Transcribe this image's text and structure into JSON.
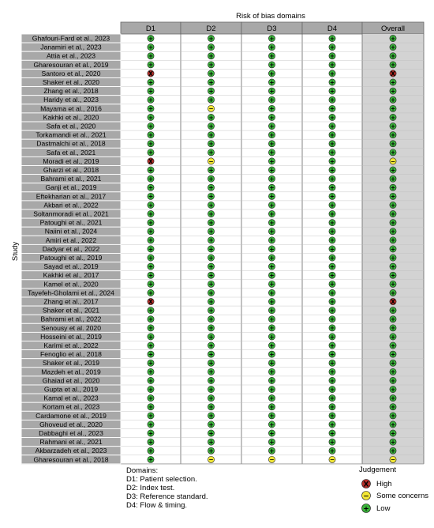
{
  "chart_data": {
    "type": "table",
    "title": "Risk of bias domains",
    "ylabel": "Study",
    "columns": [
      "D1",
      "D2",
      "D3",
      "D4",
      "Overall"
    ],
    "studies": [
      {
        "name": "Ghafouri-Fard et al., 2023",
        "values": [
          "low",
          "low",
          "low",
          "low",
          "low"
        ]
      },
      {
        "name": "Janamiri et al., 2023",
        "values": [
          "low",
          "low",
          "low",
          "low",
          "low"
        ]
      },
      {
        "name": "Attia et al., 2023",
        "values": [
          "low",
          "low",
          "low",
          "low",
          "low"
        ]
      },
      {
        "name": "Gharesouran et al., 2019",
        "values": [
          "low",
          "low",
          "low",
          "low",
          "low"
        ]
      },
      {
        "name": "Santoro et al., 2020",
        "values": [
          "high",
          "low",
          "low",
          "low",
          "high"
        ]
      },
      {
        "name": "Shaker et al., 2020",
        "values": [
          "low",
          "low",
          "low",
          "low",
          "low"
        ]
      },
      {
        "name": "Zhang et al., 2018",
        "values": [
          "low",
          "low",
          "low",
          "low",
          "low"
        ]
      },
      {
        "name": "Haridy et al., 2023",
        "values": [
          "low",
          "low",
          "low",
          "low",
          "low"
        ]
      },
      {
        "name": "Mayama et al., 2016",
        "values": [
          "low",
          "some",
          "low",
          "low",
          "low"
        ]
      },
      {
        "name": "Kakhki et al., 2020",
        "values": [
          "low",
          "low",
          "low",
          "low",
          "low"
        ]
      },
      {
        "name": "Safa et al., 2020",
        "values": [
          "low",
          "low",
          "low",
          "low",
          "low"
        ]
      },
      {
        "name": "Torkamandi et al., 2021",
        "values": [
          "low",
          "low",
          "low",
          "low",
          "low"
        ]
      },
      {
        "name": "Dastmalchi et al., 2018",
        "values": [
          "low",
          "low",
          "low",
          "low",
          "low"
        ]
      },
      {
        "name": "Safa et al., 2021",
        "values": [
          "low",
          "low",
          "low",
          "low",
          "low"
        ]
      },
      {
        "name": "Moradi et al., 2019",
        "values": [
          "high",
          "some",
          "low",
          "low",
          "some"
        ]
      },
      {
        "name": "Gharzi et al., 2018",
        "values": [
          "low",
          "low",
          "low",
          "low",
          "low"
        ]
      },
      {
        "name": "Bahrami et al., 2021",
        "values": [
          "low",
          "low",
          "low",
          "low",
          "low"
        ]
      },
      {
        "name": "Ganji et al., 2019",
        "values": [
          "low",
          "low",
          "low",
          "low",
          "low"
        ]
      },
      {
        "name": "Eftekharian et al., 2017",
        "values": [
          "low",
          "low",
          "low",
          "low",
          "low"
        ]
      },
      {
        "name": "Akbari et al., 2022",
        "values": [
          "low",
          "low",
          "low",
          "low",
          "low"
        ]
      },
      {
        "name": "Soltanmoradi et al., 2021",
        "values": [
          "low",
          "low",
          "low",
          "low",
          "low"
        ]
      },
      {
        "name": "Patoughi et al., 2021",
        "values": [
          "low",
          "low",
          "low",
          "low",
          "low"
        ]
      },
      {
        "name": "Naiini et al., 2024",
        "values": [
          "low",
          "low",
          "low",
          "low",
          "low"
        ]
      },
      {
        "name": "Amiri et al., 2022",
        "values": [
          "low",
          "low",
          "low",
          "low",
          "low"
        ]
      },
      {
        "name": "Dadyar et al., 2022",
        "values": [
          "low",
          "low",
          "low",
          "low",
          "low"
        ]
      },
      {
        "name": "Patoughi et al., 2019",
        "values": [
          "low",
          "low",
          "low",
          "low",
          "low"
        ]
      },
      {
        "name": "Sayad et al., 2019",
        "values": [
          "low",
          "low",
          "low",
          "low",
          "low"
        ]
      },
      {
        "name": "Kakhki et al., 2017",
        "values": [
          "low",
          "low",
          "low",
          "low",
          "low"
        ]
      },
      {
        "name": "Kamel et al., 2020",
        "values": [
          "low",
          "low",
          "low",
          "low",
          "low"
        ]
      },
      {
        "name": "Tayefeh-Gholami et al., 2024",
        "values": [
          "low",
          "low",
          "low",
          "low",
          "low"
        ]
      },
      {
        "name": "Zhang et al., 2017",
        "values": [
          "high",
          "low",
          "low",
          "low",
          "high"
        ]
      },
      {
        "name": "Shaker et al., 2021",
        "values": [
          "low",
          "low",
          "low",
          "low",
          "low"
        ]
      },
      {
        "name": "Bahrami et al., 2022",
        "values": [
          "low",
          "low",
          "low",
          "low",
          "low"
        ]
      },
      {
        "name": "Senousy et al. 2020",
        "values": [
          "low",
          "low",
          "low",
          "low",
          "low"
        ]
      },
      {
        "name": "Hosseini et al., 2019",
        "values": [
          "low",
          "low",
          "low",
          "low",
          "low"
        ]
      },
      {
        "name": "Karimi et al., 2022",
        "values": [
          "low",
          "low",
          "low",
          "low",
          "low"
        ]
      },
      {
        "name": "Fenoglio et al., 2018",
        "values": [
          "low",
          "low",
          "low",
          "low",
          "low"
        ]
      },
      {
        "name": "Shaker et al., 2019",
        "values": [
          "low",
          "low",
          "low",
          "low",
          "low"
        ]
      },
      {
        "name": "Mazdeh et al., 2019",
        "values": [
          "low",
          "low",
          "low",
          "low",
          "low"
        ]
      },
      {
        "name": "Ghaiad et al., 2020",
        "values": [
          "low",
          "low",
          "low",
          "low",
          "low"
        ]
      },
      {
        "name": "Gupta et al., 2019",
        "values": [
          "low",
          "low",
          "low",
          "low",
          "low"
        ]
      },
      {
        "name": "Kamal et al., 2023",
        "values": [
          "low",
          "low",
          "low",
          "low",
          "low"
        ]
      },
      {
        "name": "Kortam et al., 2023",
        "values": [
          "low",
          "low",
          "low",
          "low",
          "low"
        ]
      },
      {
        "name": "Cardamone et al., 2019",
        "values": [
          "low",
          "low",
          "low",
          "low",
          "low"
        ]
      },
      {
        "name": "Ghoveud et al., 2020",
        "values": [
          "low",
          "low",
          "low",
          "low",
          "low"
        ]
      },
      {
        "name": "Dabbaghi et al., 2023",
        "values": [
          "low",
          "low",
          "low",
          "low",
          "low"
        ]
      },
      {
        "name": "Rahmani et al., 2021",
        "values": [
          "low",
          "low",
          "low",
          "low",
          "low"
        ]
      },
      {
        "name": "Akbarzadeh et al., 2023",
        "values": [
          "low",
          "low",
          "low",
          "low",
          "low"
        ]
      },
      {
        "name": "Gharesouran et al., 2018",
        "values": [
          "low",
          "some",
          "some",
          "some",
          "some"
        ]
      }
    ],
    "domains_title": "Domains:",
    "domain_descriptions": [
      "D1: Patient selection.",
      "D2: Index test.",
      "D3: Reference standard.",
      "D4: Flow & timing."
    ],
    "legend": {
      "title": "Judgement",
      "items": [
        {
          "key": "high",
          "label": "High",
          "symbol": "X",
          "color": "#b5302a"
        },
        {
          "key": "some",
          "label": "Some concerns",
          "symbol": "−",
          "color": "#f2e636"
        },
        {
          "key": "low",
          "label": "Low",
          "symbol": "+",
          "color": "#3bb23b"
        }
      ]
    },
    "colors": {
      "header_bg": "#a8a8a8",
      "overall_bg": "#d3d3d3",
      "label_bg": "#a8a8a8",
      "grid": "#666666"
    }
  }
}
